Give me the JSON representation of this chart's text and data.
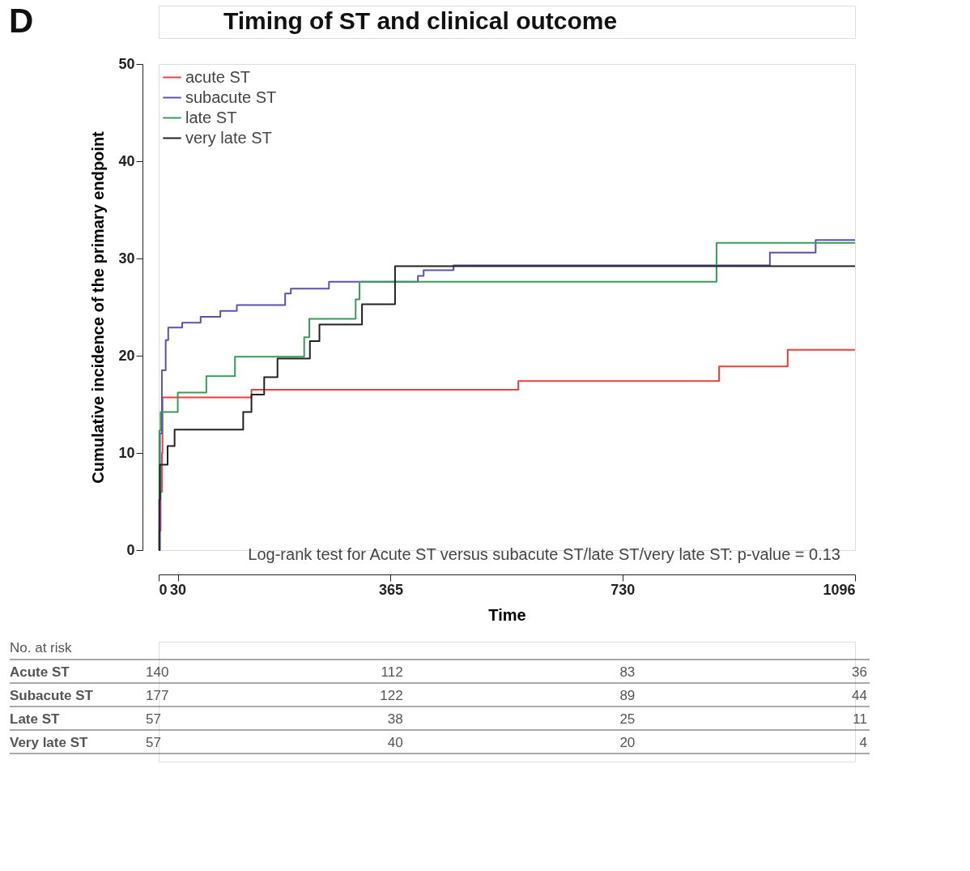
{
  "chart_data": {
    "type": "step",
    "title": "Timing of ST and clinical outcome",
    "xlabel": "Time",
    "ylabel": "Cumulative incidence of the primary endpoint",
    "xlim": [
      0,
      1096
    ],
    "xticks": [
      0,
      30,
      365,
      730,
      1096
    ],
    "ylim": [
      0,
      50
    ],
    "yticks": [
      0,
      10,
      20,
      30,
      40,
      50
    ],
    "grid": false,
    "legend": "top left",
    "line_style": "solid",
    "marker": "none",
    "series": [
      {
        "name": "acute ST",
        "color": "#e8413c",
        "x": [
          0,
          1,
          3,
          5,
          6,
          146,
          566,
          882,
          990,
          1096
        ],
        "values": [
          0,
          2,
          6,
          10,
          15.7,
          16.5,
          17.4,
          18.9,
          20.6,
          20.6
        ]
      },
      {
        "name": "subacute  ST",
        "color": "#5a52b0",
        "x": [
          0,
          2,
          5,
          11,
          15,
          37,
          66,
          97,
          123,
          199,
          208,
          268,
          408,
          417,
          464,
          962,
          1034,
          1096
        ],
        "values": [
          0,
          12,
          18.5,
          21.6,
          22.9,
          23.4,
          24.0,
          24.6,
          25.2,
          26.4,
          26.9,
          27.6,
          28.2,
          28.8,
          29.3,
          30.6,
          31.9,
          31.9
        ]
      },
      {
        "name": "late ST",
        "color": "#3a9a5a",
        "x": [
          0,
          1,
          3,
          30,
          75,
          120,
          229,
          237,
          310,
          316,
          878,
          1096
        ],
        "values": [
          0,
          12.3,
          14.2,
          16.2,
          17.9,
          19.9,
          21.9,
          23.8,
          25.8,
          27.6,
          31.6,
          31.6
        ]
      },
      {
        "name": "very late  ST",
        "color": "#222222",
        "x": [
          0,
          1,
          2,
          14,
          25,
          133,
          146,
          166,
          187,
          238,
          253,
          320,
          372,
          1096
        ],
        "values": [
          0,
          5.2,
          8.8,
          10.7,
          12.4,
          14.2,
          16.0,
          17.8,
          19.7,
          21.5,
          23.2,
          25.3,
          29.2,
          29.2
        ]
      }
    ],
    "annotations": [
      "D",
      "Log-rank test for Acute ST versus subacute ST/late ST/very late ST: p-value = 0.13",
      "No. at risk",
      "Acute ST",
      "140",
      "112",
      "83",
      "36",
      "Subacute ST",
      "177",
      "122",
      "89",
      "44",
      "Late ST",
      "57",
      "38",
      "25",
      "11",
      "Very late ST",
      "57",
      "40",
      "20",
      "4"
    ]
  }
}
